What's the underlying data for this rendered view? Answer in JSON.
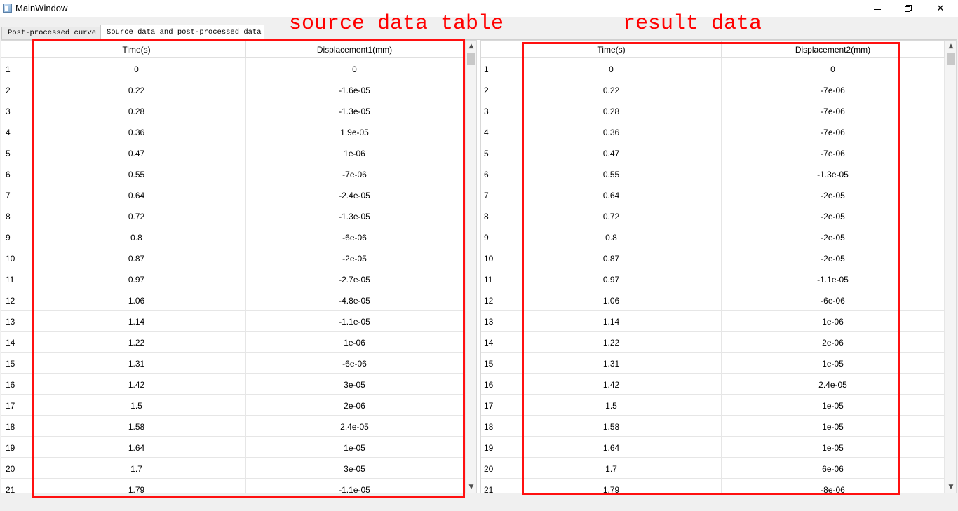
{
  "window": {
    "title": "MainWindow",
    "minimize_glyph": "—",
    "close_glyph": "✕"
  },
  "tabs": [
    {
      "label": "Post-processed curve",
      "active": false
    },
    {
      "label": "Source data and post-processed data",
      "active": true
    }
  ],
  "annotations": {
    "source": "source data table",
    "result": "result data",
    "color": "#ff0000"
  },
  "source_table": {
    "headers": [
      "Time(s)",
      "Displacement1(mm)"
    ],
    "rows": [
      [
        "1",
        "0",
        "0"
      ],
      [
        "2",
        "0.22",
        "-1.6e-05"
      ],
      [
        "3",
        "0.28",
        "-1.3e-05"
      ],
      [
        "4",
        "0.36",
        "1.9e-05"
      ],
      [
        "5",
        "0.47",
        "1e-06"
      ],
      [
        "6",
        "0.55",
        "-7e-06"
      ],
      [
        "7",
        "0.64",
        "-2.4e-05"
      ],
      [
        "8",
        "0.72",
        "-1.3e-05"
      ],
      [
        "9",
        "0.8",
        "-6e-06"
      ],
      [
        "10",
        "0.87",
        "-2e-05"
      ],
      [
        "11",
        "0.97",
        "-2.7e-05"
      ],
      [
        "12",
        "1.06",
        "-4.8e-05"
      ],
      [
        "13",
        "1.14",
        "-1.1e-05"
      ],
      [
        "14",
        "1.22",
        "1e-06"
      ],
      [
        "15",
        "1.31",
        "-6e-06"
      ],
      [
        "16",
        "1.42",
        "3e-05"
      ],
      [
        "17",
        "1.5",
        "2e-06"
      ],
      [
        "18",
        "1.58",
        "2.4e-05"
      ],
      [
        "19",
        "1.64",
        "1e-05"
      ],
      [
        "20",
        "1.7",
        "3e-05"
      ],
      [
        "21",
        "1.79",
        "-1.1e-05"
      ]
    ]
  },
  "result_table": {
    "headers": [
      "Time(s)",
      "Displacement2(mm)"
    ],
    "rows": [
      [
        "1",
        "0",
        "0"
      ],
      [
        "2",
        "0.22",
        "-7e-06"
      ],
      [
        "3",
        "0.28",
        "-7e-06"
      ],
      [
        "4",
        "0.36",
        "-7e-06"
      ],
      [
        "5",
        "0.47",
        "-7e-06"
      ],
      [
        "6",
        "0.55",
        "-1.3e-05"
      ],
      [
        "7",
        "0.64",
        "-2e-05"
      ],
      [
        "8",
        "0.72",
        "-2e-05"
      ],
      [
        "9",
        "0.8",
        "-2e-05"
      ],
      [
        "10",
        "0.87",
        "-2e-05"
      ],
      [
        "11",
        "0.97",
        "-1.1e-05"
      ],
      [
        "12",
        "1.06",
        "-6e-06"
      ],
      [
        "13",
        "1.14",
        "1e-06"
      ],
      [
        "14",
        "1.22",
        "2e-06"
      ],
      [
        "15",
        "1.31",
        "1e-05"
      ],
      [
        "16",
        "1.42",
        "2.4e-05"
      ],
      [
        "17",
        "1.5",
        "1e-05"
      ],
      [
        "18",
        "1.58",
        "1e-05"
      ],
      [
        "19",
        "1.64",
        "1e-05"
      ],
      [
        "20",
        "1.7",
        "6e-06"
      ],
      [
        "21",
        "1.79",
        "-8e-06"
      ]
    ]
  },
  "scrollbar": {
    "up_glyph": "▲",
    "down_glyph": "▼"
  }
}
